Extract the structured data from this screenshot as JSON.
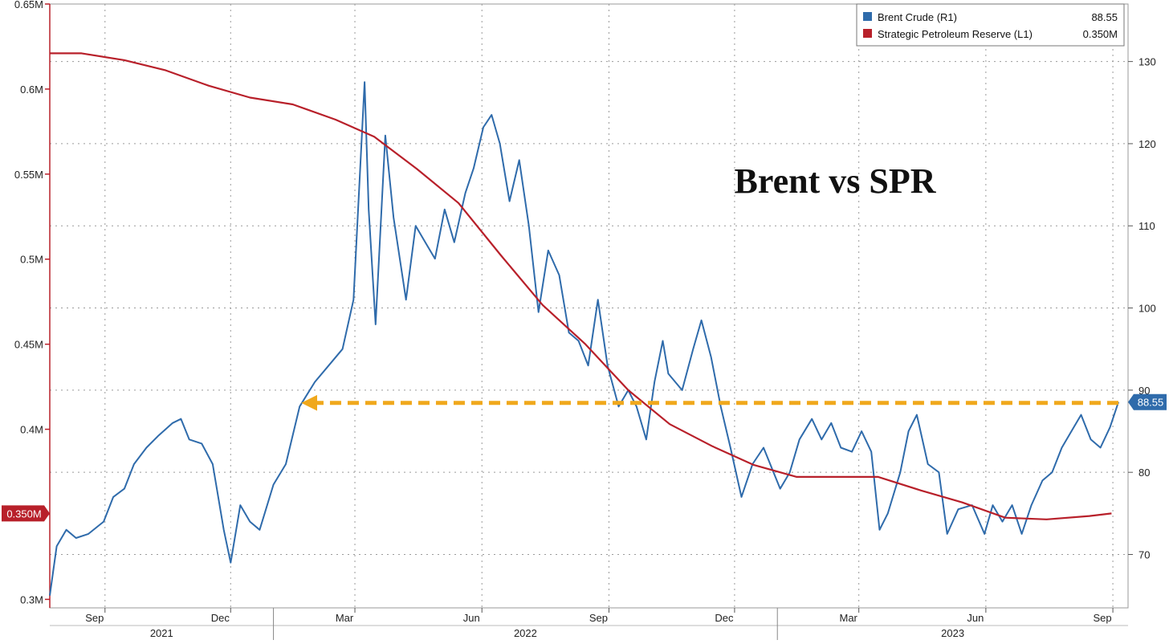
{
  "chart_data": {
    "type": "line",
    "title": "Brent vs SPR",
    "left_axis": {
      "ticks": [
        "0.3M",
        "0.35M",
        "0.4M",
        "0.45M",
        "0.5M",
        "0.55M",
        "0.6M",
        "0.65M"
      ],
      "tick_values": [
        0.3,
        0.35,
        0.4,
        0.45,
        0.5,
        0.55,
        0.6,
        0.65
      ],
      "range": [
        0.295,
        0.65
      ],
      "unit": "million barrels"
    },
    "right_axis": {
      "ticks": [
        "70",
        "80",
        "90",
        "100",
        "110",
        "120",
        "130"
      ],
      "tick_values": [
        70,
        80,
        90,
        100,
        110,
        120,
        130
      ],
      "range": [
        63.5,
        137
      ]
    },
    "x_axis": {
      "range": [
        "2021-07-23",
        "2023-09-12"
      ],
      "month_ticks": [
        {
          "label": "Sep",
          "date": "2021-09-01"
        },
        {
          "label": "Dec",
          "date": "2021-12-01"
        },
        {
          "label": "Mar",
          "date": "2022-03-01"
        },
        {
          "label": "Jun",
          "date": "2022-06-01"
        },
        {
          "label": "Sep",
          "date": "2022-09-01"
        },
        {
          "label": "Dec",
          "date": "2022-12-01"
        },
        {
          "label": "Mar",
          "date": "2023-03-01"
        },
        {
          "label": "Jun",
          "date": "2023-06-01"
        },
        {
          "label": "Sep",
          "date": "2023-09-01"
        }
      ],
      "years": [
        {
          "label": "2021",
          "start": "2021-07-23",
          "end": "2022-01-01"
        },
        {
          "label": "2022",
          "start": "2022-01-01",
          "end": "2023-01-01"
        },
        {
          "label": "2023",
          "start": "2023-01-01",
          "end": "2023-09-12"
        }
      ]
    },
    "grid": true,
    "legend_position": "top-right",
    "series": [
      {
        "name": "Brent Crude (R1)",
        "axis": "right",
        "color": "#2f6bab",
        "last_value": "88.55",
        "points": [
          [
            "2021-07-23",
            65
          ],
          [
            "2021-07-28",
            71
          ],
          [
            "2021-08-04",
            73
          ],
          [
            "2021-08-11",
            72
          ],
          [
            "2021-08-20",
            72.5
          ],
          [
            "2021-08-31",
            74
          ],
          [
            "2021-09-07",
            77
          ],
          [
            "2021-09-15",
            78
          ],
          [
            "2021-09-22",
            81
          ],
          [
            "2021-10-01",
            83
          ],
          [
            "2021-10-10",
            84.5
          ],
          [
            "2021-10-20",
            86
          ],
          [
            "2021-10-26",
            86.5
          ],
          [
            "2021-11-01",
            84
          ],
          [
            "2021-11-10",
            83.5
          ],
          [
            "2021-11-18",
            81
          ],
          [
            "2021-11-26",
            73
          ],
          [
            "2021-12-01",
            69
          ],
          [
            "2021-12-08",
            76
          ],
          [
            "2021-12-15",
            74
          ],
          [
            "2021-12-22",
            73
          ],
          [
            "2022-01-01",
            78.5
          ],
          [
            "2022-01-10",
            81
          ],
          [
            "2022-01-20",
            88
          ],
          [
            "2022-01-31",
            91
          ],
          [
            "2022-02-10",
            93
          ],
          [
            "2022-02-20",
            95
          ],
          [
            "2022-02-28",
            101
          ],
          [
            "2022-03-03",
            111
          ],
          [
            "2022-03-08",
            127.5
          ],
          [
            "2022-03-11",
            112
          ],
          [
            "2022-03-16",
            98
          ],
          [
            "2022-03-23",
            121
          ],
          [
            "2022-03-29",
            111
          ],
          [
            "2022-04-07",
            101
          ],
          [
            "2022-04-14",
            110
          ],
          [
            "2022-04-21",
            108
          ],
          [
            "2022-04-28",
            106
          ],
          [
            "2022-05-05",
            112
          ],
          [
            "2022-05-12",
            108
          ],
          [
            "2022-05-20",
            114
          ],
          [
            "2022-05-26",
            117
          ],
          [
            "2022-06-02",
            122
          ],
          [
            "2022-06-08",
            123.5
          ],
          [
            "2022-06-14",
            120
          ],
          [
            "2022-06-21",
            113
          ],
          [
            "2022-06-28",
            118
          ],
          [
            "2022-07-05",
            110
          ],
          [
            "2022-07-12",
            99.5
          ],
          [
            "2022-07-19",
            107
          ],
          [
            "2022-07-27",
            104
          ],
          [
            "2022-08-03",
            97
          ],
          [
            "2022-08-10",
            96
          ],
          [
            "2022-08-17",
            93
          ],
          [
            "2022-08-24",
            101
          ],
          [
            "2022-08-31",
            93
          ],
          [
            "2022-09-08",
            88
          ],
          [
            "2022-09-15",
            90
          ],
          [
            "2022-09-21",
            88
          ],
          [
            "2022-09-28",
            84
          ],
          [
            "2022-10-04",
            91
          ],
          [
            "2022-10-10",
            96
          ],
          [
            "2022-10-14",
            92
          ],
          [
            "2022-10-24",
            90
          ],
          [
            "2022-11-01",
            95
          ],
          [
            "2022-11-07",
            98.5
          ],
          [
            "2022-11-14",
            94
          ],
          [
            "2022-11-21",
            88
          ],
          [
            "2022-11-28",
            83
          ],
          [
            "2022-12-06",
            77
          ],
          [
            "2022-12-14",
            81
          ],
          [
            "2022-12-22",
            83
          ],
          [
            "2023-01-03",
            78
          ],
          [
            "2023-01-10",
            80
          ],
          [
            "2023-01-17",
            84
          ],
          [
            "2023-01-26",
            86.5
          ],
          [
            "2023-02-02",
            84
          ],
          [
            "2023-02-09",
            86
          ],
          [
            "2023-02-16",
            83
          ],
          [
            "2023-02-24",
            82.5
          ],
          [
            "2023-03-03",
            85
          ],
          [
            "2023-03-10",
            82.5
          ],
          [
            "2023-03-16",
            73
          ],
          [
            "2023-03-22",
            75
          ],
          [
            "2023-03-31",
            80
          ],
          [
            "2023-04-06",
            85
          ],
          [
            "2023-04-12",
            87
          ],
          [
            "2023-04-20",
            81
          ],
          [
            "2023-04-28",
            80
          ],
          [
            "2023-05-04",
            72.5
          ],
          [
            "2023-05-12",
            75.5
          ],
          [
            "2023-05-22",
            76
          ],
          [
            "2023-05-31",
            72.5
          ],
          [
            "2023-06-06",
            76
          ],
          [
            "2023-06-13",
            74
          ],
          [
            "2023-06-20",
            76
          ],
          [
            "2023-06-27",
            72.5
          ],
          [
            "2023-07-04",
            76
          ],
          [
            "2023-07-12",
            79
          ],
          [
            "2023-07-19",
            80
          ],
          [
            "2023-07-26",
            83
          ],
          [
            "2023-08-02",
            85
          ],
          [
            "2023-08-09",
            87
          ],
          [
            "2023-08-16",
            84
          ],
          [
            "2023-08-23",
            83
          ],
          [
            "2023-08-30",
            85.5
          ],
          [
            "2023-09-05",
            88.55
          ]
        ]
      },
      {
        "name": "Strategic Petroleum Reserve (L1)",
        "axis": "left",
        "color": "#b8202a",
        "last_value": "0.350M",
        "points": [
          [
            "2021-07-23",
            0.621
          ],
          [
            "2021-08-15",
            0.621
          ],
          [
            "2021-09-15",
            0.617
          ],
          [
            "2021-10-15",
            0.611
          ],
          [
            "2021-11-15",
            0.602
          ],
          [
            "2021-12-15",
            0.595
          ],
          [
            "2022-01-15",
            0.591
          ],
          [
            "2022-02-15",
            0.582
          ],
          [
            "2022-03-15",
            0.572
          ],
          [
            "2022-04-15",
            0.553
          ],
          [
            "2022-05-15",
            0.533
          ],
          [
            "2022-06-15",
            0.502
          ],
          [
            "2022-07-15",
            0.473
          ],
          [
            "2022-08-15",
            0.45
          ],
          [
            "2022-09-15",
            0.423
          ],
          [
            "2022-10-15",
            0.403
          ],
          [
            "2022-11-15",
            0.39
          ],
          [
            "2022-12-15",
            0.379
          ],
          [
            "2023-01-15",
            0.372
          ],
          [
            "2023-02-15",
            0.372
          ],
          [
            "2023-03-15",
            0.372
          ],
          [
            "2023-04-15",
            0.364
          ],
          [
            "2023-05-15",
            0.357
          ],
          [
            "2023-06-15",
            0.348
          ],
          [
            "2023-07-15",
            0.347
          ],
          [
            "2023-08-15",
            0.349
          ],
          [
            "2023-08-31",
            0.3505
          ]
        ]
      }
    ],
    "annotations": [
      {
        "type": "dashed-arrow",
        "color": "#f0a81c",
        "level": 88.55,
        "axis": "right",
        "from": "2023-09-05",
        "to": "2022-01-20"
      }
    ]
  }
}
